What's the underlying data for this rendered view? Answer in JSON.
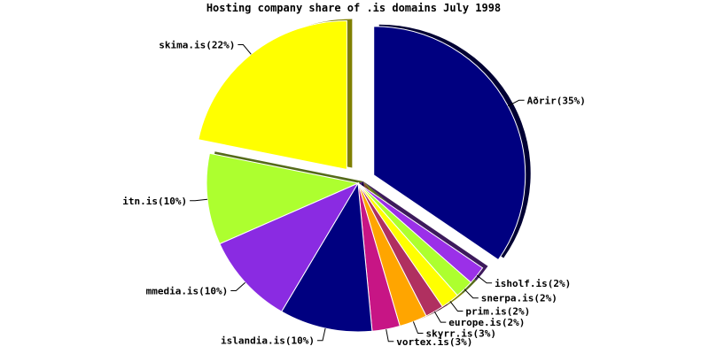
{
  "chart_data": {
    "type": "pie",
    "title": "Hosting company share of .is domains July 1998",
    "slices": [
      {
        "label": "Aðrir(35%)",
        "value": 35,
        "color": "#000080",
        "shadow": "#000033",
        "exploded": true
      },
      {
        "label": "isholf.is(2%)",
        "value": 2,
        "color": "#9b30e8",
        "shadow": "#3d1a5c",
        "exploded": false
      },
      {
        "label": "snerpa.is(2%)",
        "value": 2,
        "color": "#adff2f",
        "shadow": "#556b1a",
        "exploded": false
      },
      {
        "label": "prim.is(2%)",
        "value": 2,
        "color": "#ffff00",
        "shadow": "#7f7f00",
        "exploded": false
      },
      {
        "label": "europe.is(2%)",
        "value": 2,
        "color": "#b03060",
        "shadow": "#581830",
        "exploded": false
      },
      {
        "label": "skyrr.is(3%)",
        "value": 3,
        "color": "#ffa500",
        "shadow": "#7f5200",
        "exploded": false
      },
      {
        "label": "vortex.is(3%)",
        "value": 3,
        "color": "#c71585",
        "shadow": "#640a43",
        "exploded": false
      },
      {
        "label": "islandia.is(10%)",
        "value": 10,
        "color": "#000080",
        "shadow": "#000033",
        "exploded": false
      },
      {
        "label": "mmedia.is(10%)",
        "value": 10,
        "color": "#8a2be2",
        "shadow": "#451570",
        "exploded": false
      },
      {
        "label": "itn.is(10%)",
        "value": 10,
        "color": "#adff2f",
        "shadow": "#556b1a",
        "exploded": false
      },
      {
        "label": "skima.is(22%)",
        "value": 22,
        "color": "#ffff00",
        "shadow": "#7f7f00",
        "exploded": true
      }
    ]
  }
}
